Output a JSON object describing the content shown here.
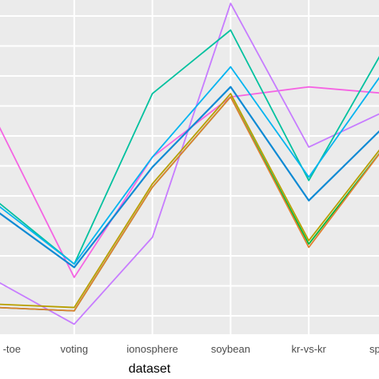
{
  "chart_data": {
    "type": "line",
    "xlabel": "dataset",
    "categories": [
      "tic-tac-toe",
      "voting",
      "ionosphere",
      "soybean",
      "kr-vs-kr",
      "splice"
    ],
    "visible_tick_labels": [
      "-toe",
      "voting",
      "ionosphere",
      "soybean",
      "kr-vs-kr",
      "sp"
    ],
    "ylim": [
      0,
      1
    ],
    "grid": true,
    "legend": "none",
    "colors": {
      "panel": "#ebebeb",
      "gridline": "#ffffff"
    },
    "series": [
      {
        "color": "#f564e3",
        "values": [
          0.64,
          0.17,
          0.53,
          0.71,
          0.74,
          0.72
        ]
      },
      {
        "color": "#c77cff",
        "values": [
          0.16,
          0.03,
          0.29,
          0.99,
          0.56,
          0.67
        ]
      },
      {
        "color": "#00ba38",
        "values": [
          0.08,
          0.07,
          0.44,
          0.71,
          0.27,
          0.57
        ]
      },
      {
        "color": "#b79f00",
        "values": [
          0.09,
          0.08,
          0.45,
          0.72,
          0.28,
          0.58
        ]
      },
      {
        "color": "#00c19f",
        "values": [
          0.4,
          0.21,
          0.72,
          0.91,
          0.46,
          0.87
        ]
      },
      {
        "color": "#00b4f0",
        "values": [
          0.39,
          0.21,
          0.53,
          0.8,
          0.47,
          0.8
        ]
      },
      {
        "color": "#0f8ad4",
        "values": [
          0.37,
          0.2,
          0.5,
          0.74,
          0.4,
          0.63
        ]
      },
      {
        "color": "#e08030",
        "values": [
          0.08,
          0.07,
          0.44,
          0.71,
          0.26,
          0.57
        ]
      }
    ]
  }
}
